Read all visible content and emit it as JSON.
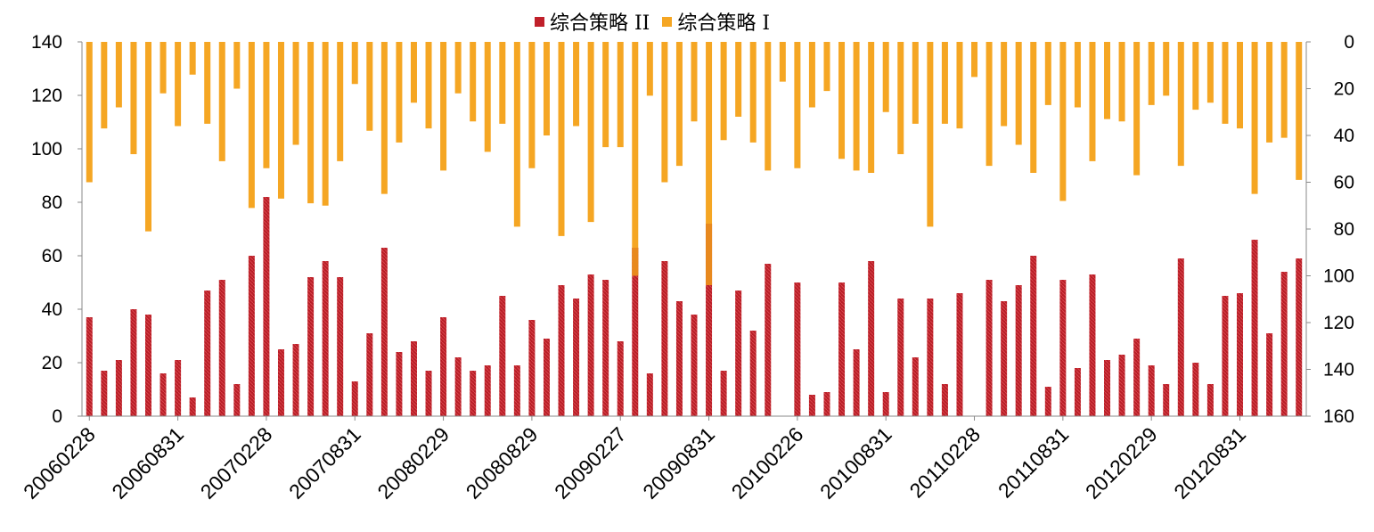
{
  "chart_data": {
    "type": "bar",
    "legend_position": "top",
    "grid": false,
    "left_axis": {
      "ticks": [
        "0",
        "20",
        "40",
        "60",
        "80",
        "100",
        "120",
        "140"
      ],
      "min": 0,
      "max": 140
    },
    "right_axis": {
      "ticks": [
        "0",
        "20",
        "40",
        "60",
        "80",
        "100",
        "120",
        "140",
        "160"
      ],
      "min": 0,
      "max": 160,
      "reversed": true
    },
    "x_tick_labels": [
      "20060228",
      "20060831",
      "20070228",
      "20070831",
      "20080229",
      "20080829",
      "20090227",
      "20090831",
      "20100226",
      "20100831",
      "20110228",
      "20110831",
      "20120229",
      "20120831"
    ],
    "n_periods": 83,
    "series": [
      {
        "name": "综合策略 II",
        "axis": "left",
        "color": "#C0202A",
        "values": [
          37,
          17,
          21,
          40,
          38,
          16,
          21,
          7,
          47,
          51,
          12,
          60,
          82,
          25,
          27,
          52,
          58,
          52,
          13,
          31,
          63,
          24,
          28,
          17,
          37,
          22,
          17,
          19,
          45,
          19,
          36,
          29,
          49,
          44,
          53,
          51,
          28,
          63,
          16,
          58,
          43,
          38,
          72,
          17,
          47,
          32,
          57,
          0,
          50,
          8,
          9,
          50,
          25,
          58,
          9,
          44,
          22,
          44,
          12,
          46,
          0,
          51,
          43,
          49,
          60,
          11,
          51,
          18,
          53,
          21,
          23,
          29,
          19,
          12,
          59,
          20,
          12,
          45,
          46,
          66,
          31,
          54,
          59
        ]
      },
      {
        "name": "综合策略 I",
        "axis": "right",
        "color": "#F5A623",
        "values": [
          60,
          37,
          28,
          48,
          81,
          22,
          36,
          14,
          35,
          51,
          20,
          71,
          54,
          67,
          44,
          69,
          70,
          51,
          18,
          38,
          65,
          43,
          26,
          37,
          55,
          22,
          34,
          47,
          35,
          79,
          54,
          40,
          83,
          36,
          77,
          45,
          45,
          100,
          23,
          60,
          53,
          34,
          104,
          42,
          32,
          43,
          55,
          17,
          54,
          28,
          21,
          50,
          55,
          56,
          30,
          48,
          35,
          79,
          35,
          37,
          15,
          53,
          36,
          44,
          56,
          27,
          68,
          28,
          51,
          33,
          34,
          57,
          27,
          23,
          53,
          29,
          26,
          35,
          37,
          65,
          43,
          41,
          59
        ]
      }
    ]
  }
}
